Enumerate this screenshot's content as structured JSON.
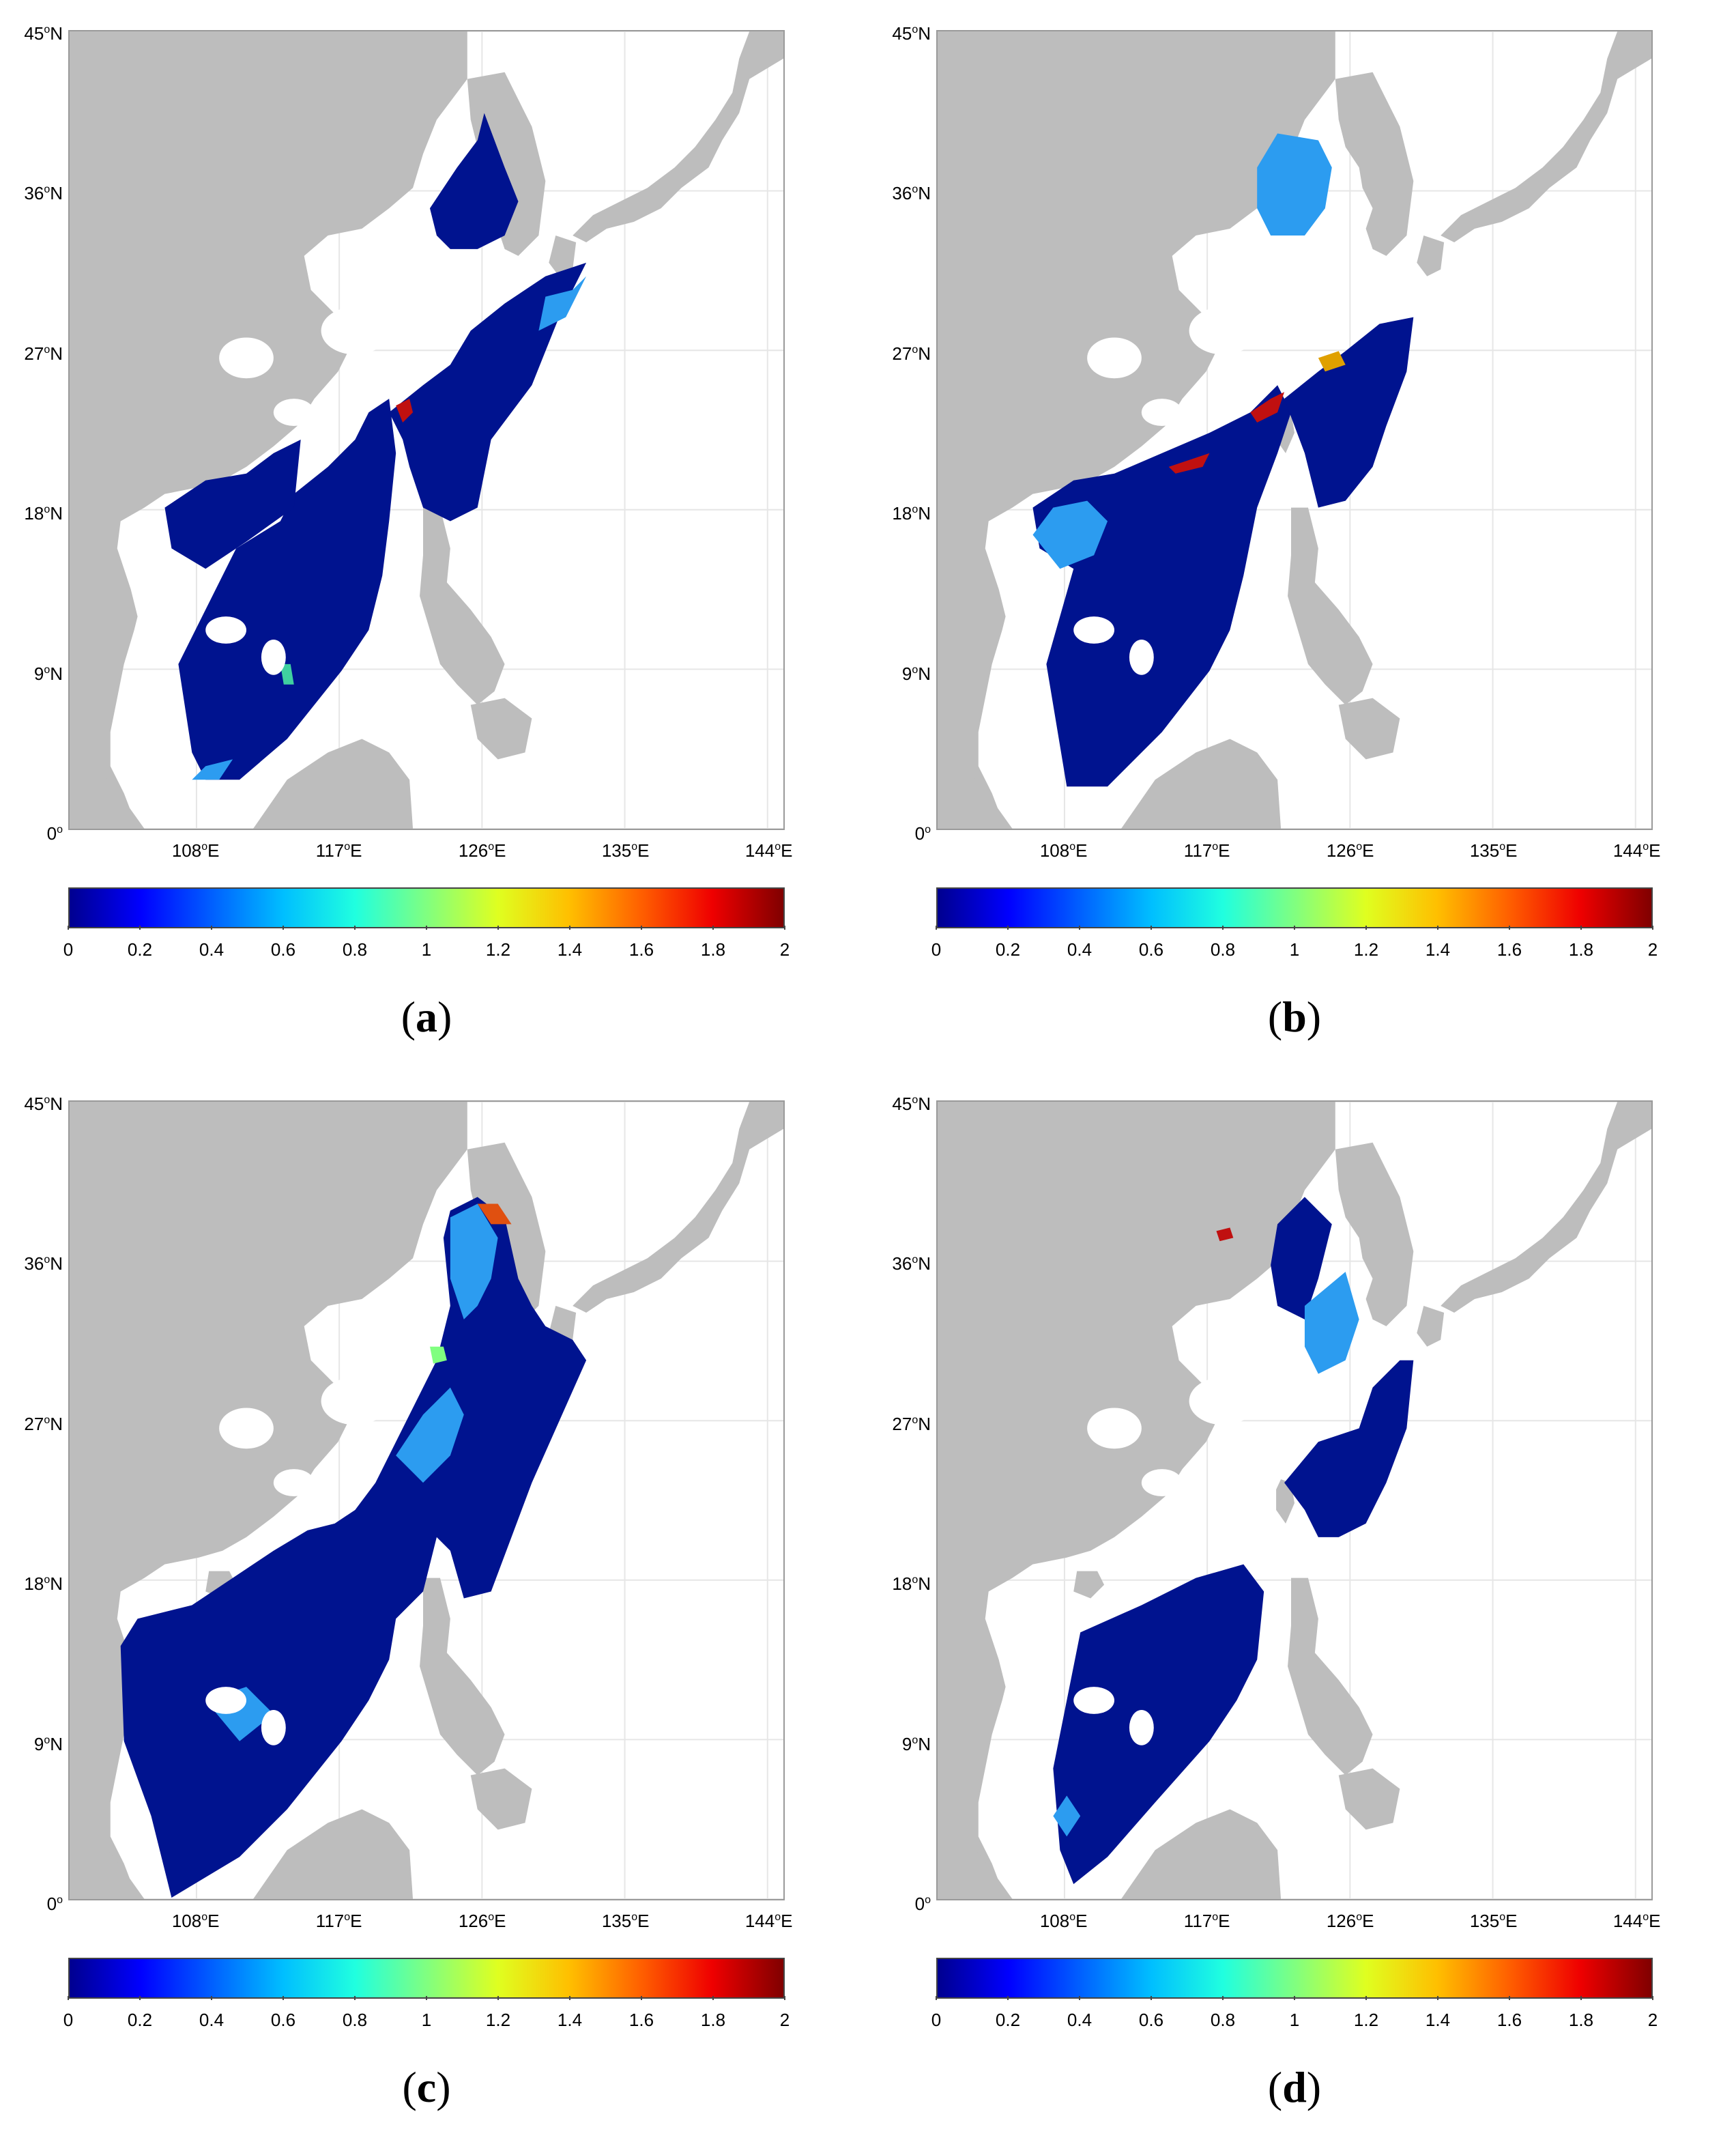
{
  "figure": {
    "panels": [
      {
        "id": "a",
        "label_open": "(",
        "label_letter": "a",
        "label_close": ")"
      },
      {
        "id": "b",
        "label_open": "(",
        "label_letter": "b",
        "label_close": ")"
      },
      {
        "id": "c",
        "label_open": "(",
        "label_letter": "c",
        "label_close": ")"
      },
      {
        "id": "d",
        "label_open": "(",
        "label_letter": "d",
        "label_close": ")"
      }
    ],
    "lat_labels": [
      {
        "value": 45,
        "deg": "45",
        "hemi": "N"
      },
      {
        "value": 36,
        "deg": "36",
        "hemi": "N"
      },
      {
        "value": 27,
        "deg": "27",
        "hemi": "N"
      },
      {
        "value": 18,
        "deg": "18",
        "hemi": "N"
      },
      {
        "value": 9,
        "deg": "9",
        "hemi": "N"
      },
      {
        "value": 0,
        "deg": "0",
        "hemi": ""
      }
    ],
    "lon_labels": [
      {
        "value": 108,
        "deg": "108",
        "hemi": "E"
      },
      {
        "value": 117,
        "deg": "117",
        "hemi": "E"
      },
      {
        "value": 126,
        "deg": "126",
        "hemi": "E"
      },
      {
        "value": 135,
        "deg": "135",
        "hemi": "E"
      },
      {
        "value": 144,
        "deg": "144",
        "hemi": "E"
      }
    ],
    "lon_range": [
      100,
      145
    ],
    "lat_range": [
      0,
      45
    ],
    "colorbar": {
      "range": [
        0,
        2
      ],
      "ticks": [
        "0",
        "0.2",
        "0.4",
        "0.6",
        "0.8",
        "1",
        "1.2",
        "1.4",
        "1.6",
        "1.8",
        "2"
      ],
      "colormap": "jet"
    },
    "colors": {
      "land": "#bdbdbd",
      "ocean": "#ffffff",
      "grid": "#e6e6e6",
      "low_value": "#00138f",
      "mid_value": "#2c9cf0"
    }
  }
}
